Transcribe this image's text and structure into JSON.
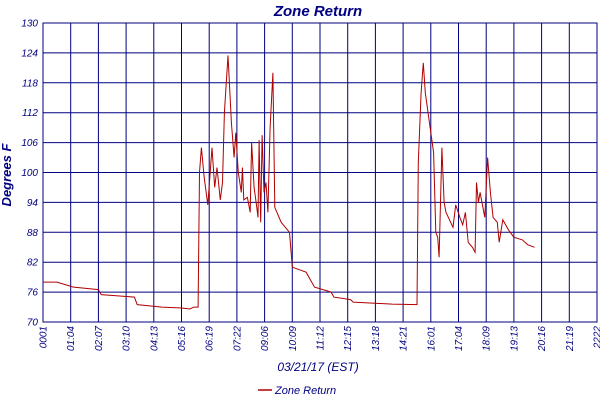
{
  "chart_data": {
    "type": "line",
    "title": "Zone Return",
    "xlabel": "03/21/17 (EST)",
    "ylabel": "Degrees F",
    "ylim": [
      70,
      130
    ],
    "yticks": [
      "70",
      "76",
      "82",
      "88",
      "94",
      "100",
      "106",
      "112",
      "118",
      "124",
      "130"
    ],
    "xticks": [
      "0001",
      "01:04",
      "02:07",
      "03:10",
      "04:13",
      "05:16",
      "06:19",
      "07:22",
      "09:06",
      "10:09",
      "11:12",
      "12:15",
      "13:18",
      "14:21",
      "16:01",
      "17:04",
      "18:09",
      "19:13",
      "20:16",
      "21:19",
      "2222"
    ],
    "grid": true,
    "legend_position": "bottom-left",
    "line_color": "#b00000",
    "grid_color": "#000080",
    "series": [
      {
        "name": "Zone Return",
        "points": [
          [
            0,
            78
          ],
          [
            0.5,
            78
          ],
          [
            1.1,
            77
          ],
          [
            2.0,
            76.5
          ],
          [
            2.1,
            75.5
          ],
          [
            3.3,
            75
          ],
          [
            3.4,
            73.5
          ],
          [
            4.3,
            73
          ],
          [
            5.0,
            72.8
          ],
          [
            5.3,
            72.6
          ],
          [
            5.45,
            73
          ],
          [
            5.6,
            73
          ],
          [
            5.65,
            100
          ],
          [
            5.72,
            105
          ],
          [
            5.82,
            99
          ],
          [
            5.95,
            93.5
          ],
          [
            6.1,
            105
          ],
          [
            6.2,
            97
          ],
          [
            6.28,
            101
          ],
          [
            6.4,
            94.5
          ],
          [
            6.48,
            98
          ],
          [
            6.55,
            112
          ],
          [
            6.68,
            123.5
          ],
          [
            6.8,
            110
          ],
          [
            6.9,
            103
          ],
          [
            6.96,
            108
          ],
          [
            7.05,
            100
          ],
          [
            7.16,
            96
          ],
          [
            7.2,
            101
          ],
          [
            7.25,
            94.5
          ],
          [
            7.38,
            95
          ],
          [
            7.48,
            92
          ],
          [
            7.53,
            106
          ],
          [
            7.62,
            97
          ],
          [
            7.72,
            93
          ],
          [
            7.76,
            91
          ],
          [
            7.8,
            106.5
          ],
          [
            7.86,
            90
          ],
          [
            7.91,
            107.5
          ],
          [
            7.98,
            96
          ],
          [
            8.05,
            98
          ],
          [
            8.12,
            92
          ],
          [
            8.2,
            109
          ],
          [
            8.3,
            120
          ],
          [
            8.37,
            93
          ],
          [
            8.6,
            90
          ],
          [
            8.9,
            88
          ],
          [
            9.0,
            81
          ],
          [
            9.5,
            80
          ],
          [
            9.8,
            77
          ],
          [
            10.4,
            76
          ],
          [
            10.5,
            75
          ],
          [
            11.1,
            74.5
          ],
          [
            11.2,
            74
          ],
          [
            12.6,
            73.6
          ],
          [
            13.5,
            73.5
          ],
          [
            13.55,
            102
          ],
          [
            13.65,
            116
          ],
          [
            13.73,
            122
          ],
          [
            13.8,
            116
          ],
          [
            14.1,
            104
          ],
          [
            14.18,
            88
          ],
          [
            14.25,
            87
          ],
          [
            14.3,
            83
          ],
          [
            14.4,
            105
          ],
          [
            14.48,
            94
          ],
          [
            14.55,
            92
          ],
          [
            14.8,
            89
          ],
          [
            14.9,
            93.5
          ],
          [
            15.05,
            91
          ],
          [
            15.15,
            89.5
          ],
          [
            15.25,
            92
          ],
          [
            15.35,
            86
          ],
          [
            15.5,
            85
          ],
          [
            15.6,
            84
          ],
          [
            15.65,
            98
          ],
          [
            15.72,
            94
          ],
          [
            15.78,
            96
          ],
          [
            15.88,
            93
          ],
          [
            15.95,
            91
          ],
          [
            16.05,
            103
          ],
          [
            16.15,
            96
          ],
          [
            16.25,
            91
          ],
          [
            16.4,
            90
          ],
          [
            16.47,
            86
          ],
          [
            16.6,
            90.5
          ],
          [
            16.8,
            88.5
          ],
          [
            17.0,
            87
          ],
          [
            17.3,
            86.5
          ],
          [
            17.5,
            85.5
          ],
          [
            17.75,
            85
          ]
        ]
      }
    ]
  }
}
